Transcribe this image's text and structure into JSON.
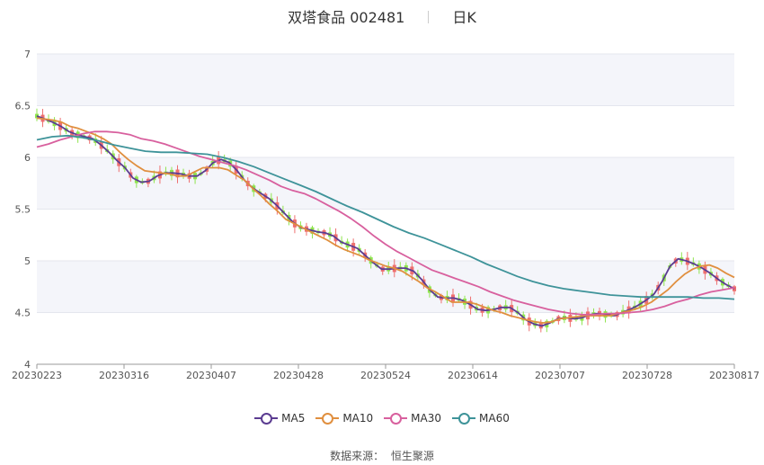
{
  "header": {
    "name": "双塔食品 002481",
    "period": "日K"
  },
  "source": {
    "label": "数据来源：",
    "value": "恒生聚源"
  },
  "chart_data": {
    "type": "candlestick",
    "ylim": [
      4,
      7
    ],
    "yticks": [
      "4",
      "4.5",
      "5",
      "5.5",
      "6",
      "6.5",
      "7"
    ],
    "xticks": [
      "20230223",
      "20230316",
      "20230407",
      "20230428",
      "20230524",
      "20230614",
      "20230707",
      "20230728",
      "20230817"
    ],
    "up_color": "#ee6f6f",
    "down_color": "#8fe44e",
    "series": [
      {
        "name": "MA5",
        "color": "#5b3c91",
        "values": [
          6.4,
          6.37,
          6.34,
          6.3,
          6.25,
          6.22,
          6.2,
          6.18,
          6.12,
          6.05,
          5.97,
          5.9,
          5.8,
          5.76,
          5.77,
          5.82,
          5.85,
          5.85,
          5.84,
          5.82,
          5.82,
          5.87,
          5.95,
          5.98,
          5.95,
          5.87,
          5.77,
          5.7,
          5.65,
          5.6,
          5.53,
          5.45,
          5.37,
          5.32,
          5.3,
          5.28,
          5.27,
          5.24,
          5.18,
          5.15,
          5.12,
          5.05,
          4.98,
          4.92,
          4.92,
          4.93,
          4.93,
          4.9,
          4.82,
          4.72,
          4.65,
          4.64,
          4.64,
          4.62,
          4.58,
          4.53,
          4.52,
          4.53,
          4.55,
          4.55,
          4.5,
          4.43,
          4.39,
          4.37,
          4.4,
          4.44,
          4.45,
          4.44,
          4.45,
          4.48,
          4.49,
          4.48,
          4.47,
          4.5,
          4.53,
          4.57,
          4.62,
          4.68,
          4.8,
          4.95,
          5.02,
          5.0,
          4.97,
          4.93,
          4.88,
          4.82,
          4.77,
          4.73
        ]
      },
      {
        "name": "MA10",
        "color": "#e08f3f",
        "values": [
          6.38,
          6.37,
          6.36,
          6.34,
          6.3,
          6.28,
          6.25,
          6.22,
          6.18,
          6.13,
          6.05,
          5.98,
          5.92,
          5.87,
          5.86,
          5.85,
          5.84,
          5.82,
          5.82,
          5.86,
          5.9,
          5.9,
          5.9,
          5.88,
          5.83,
          5.78,
          5.7,
          5.63,
          5.55,
          5.48,
          5.4,
          5.36,
          5.32,
          5.28,
          5.24,
          5.2,
          5.15,
          5.11,
          5.08,
          5.05,
          5.01,
          4.98,
          4.95,
          4.93,
          4.9,
          4.85,
          4.8,
          4.74,
          4.7,
          4.65,
          4.6,
          4.6,
          4.6,
          4.58,
          4.55,
          4.52,
          4.5,
          4.47,
          4.45,
          4.43,
          4.41,
          4.4,
          4.41,
          4.44,
          4.45,
          4.46,
          4.47,
          4.47,
          4.47,
          4.47,
          4.49,
          4.51,
          4.53,
          4.56,
          4.6,
          4.66,
          4.72,
          4.8,
          4.87,
          4.92,
          4.95,
          4.96,
          4.93,
          4.88,
          4.84
        ]
      },
      {
        "name": "MA30",
        "color": "#d8609e",
        "values": [
          6.1,
          6.13,
          6.17,
          6.2,
          6.23,
          6.25,
          6.25,
          6.24,
          6.22,
          6.18,
          6.16,
          6.13,
          6.09,
          6.05,
          6.01,
          5.98,
          5.95,
          5.92,
          5.88,
          5.83,
          5.78,
          5.72,
          5.68,
          5.65,
          5.6,
          5.54,
          5.48,
          5.41,
          5.33,
          5.24,
          5.16,
          5.09,
          5.03,
          4.97,
          4.91,
          4.87,
          4.83,
          4.79,
          4.75,
          4.7,
          4.66,
          4.62,
          4.59,
          4.56,
          4.53,
          4.51,
          4.49,
          4.48,
          4.48,
          4.49,
          4.49,
          4.5,
          4.51,
          4.53,
          4.56,
          4.6,
          4.63,
          4.67,
          4.7,
          4.72,
          4.74
        ]
      },
      {
        "name": "MA60",
        "color": "#3e9399",
        "values": [
          6.17,
          6.2,
          6.21,
          6.19,
          6.16,
          6.12,
          6.09,
          6.06,
          6.05,
          6.05,
          6.04,
          6.03,
          6.0,
          5.96,
          5.91,
          5.85,
          5.79,
          5.73,
          5.67,
          5.6,
          5.53,
          5.47,
          5.4,
          5.33,
          5.27,
          5.22,
          5.16,
          5.1,
          5.04,
          4.97,
          4.91,
          4.85,
          4.8,
          4.76,
          4.73,
          4.71,
          4.69,
          4.67,
          4.66,
          4.65,
          4.65,
          4.65,
          4.65,
          4.64,
          4.64,
          4.63
        ]
      }
    ]
  }
}
